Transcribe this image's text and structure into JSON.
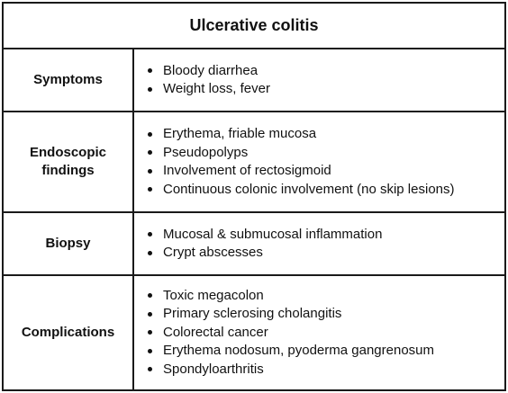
{
  "title": "Ulcerative colitis",
  "rows": [
    {
      "label": "Symptoms",
      "items": [
        "Bloody diarrhea",
        "Weight loss, fever"
      ]
    },
    {
      "label": "Endoscopic findings",
      "items": [
        "Erythema, friable mucosa",
        "Pseudopolyps",
        "Involvement of rectosigmoid",
        "Continuous colonic involvement (no skip lesions)"
      ]
    },
    {
      "label": "Biopsy",
      "items": [
        "Mucosal & submucosal inflammation",
        "Crypt abscesses"
      ]
    },
    {
      "label": "Complications",
      "items": [
        "Toxic megacolon",
        "Primary sclerosing cholangitis",
        "Colorectal cancer",
        "Erythema nodosum, pyoderma gangrenosum",
        "Spondyloarthritis"
      ]
    }
  ]
}
